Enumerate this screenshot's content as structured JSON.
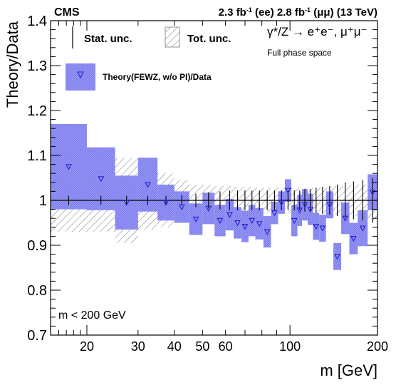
{
  "header": {
    "experiment": "CMS",
    "luminosity_html": "2.3 fb<tspan baseline-shift=\"super\" font-size=\"9\">-1</tspan> (ee) 2.8 fb<tspan baseline-shift=\"super\" font-size=\"9\">-1</tspan> (μμ) (13 TeV)"
  },
  "legend": {
    "stat_unc": "Stat. unc.",
    "tot_unc": "Tot. unc.",
    "theory": "Theory(FEWZ, w/o PI)/Data"
  },
  "process_label": "γ*/Z → e⁺e⁻, μ⁺μ⁻",
  "phase_space_label": "Full phase space",
  "mass_cut_label": "m < 200 GeV",
  "colors": {
    "theory": "#5555ee",
    "theory_fill": "#8f8ff2",
    "total_hatch": "#777777"
  },
  "chart_data": {
    "type": "scatter",
    "title": "",
    "xlabel": "m [GeV]",
    "ylabel": "Theory/Data",
    "xscale": "log",
    "xlim": [
      15,
      200
    ],
    "ylim": [
      0.7,
      1.4
    ],
    "xticks": [
      20,
      30,
      40,
      50,
      60,
      100,
      200
    ],
    "yticks": [
      0.7,
      0.8,
      0.9,
      1.0,
      1.1,
      1.2,
      1.3,
      1.4
    ],
    "grid": false,
    "legend_position": "top",
    "reference_line": 1.0,
    "bins": [
      {
        "lo": 15,
        "hi": 20,
        "ratio": 1.075,
        "theory_unc": 0.095,
        "tot_unc": 0.07,
        "stat_unc": 0.01
      },
      {
        "lo": 20,
        "hi": 25,
        "ratio": 1.048,
        "theory_unc": 0.07,
        "tot_unc": 0.07,
        "stat_unc": 0.01
      },
      {
        "lo": 25,
        "hi": 30,
        "ratio": 0.995,
        "theory_unc": 0.06,
        "tot_unc": 0.095,
        "stat_unc": 0.01
      },
      {
        "lo": 30,
        "hi": 35,
        "ratio": 1.035,
        "theory_unc": 0.06,
        "tot_unc": 0.065,
        "stat_unc": 0.01
      },
      {
        "lo": 35,
        "hi": 40,
        "ratio": 0.995,
        "theory_unc": 0.04,
        "tot_unc": 0.06,
        "stat_unc": 0.01
      },
      {
        "lo": 40,
        "hi": 45,
        "ratio": 0.985,
        "theory_unc": 0.035,
        "tot_unc": 0.045,
        "stat_unc": 0.012
      },
      {
        "lo": 45,
        "hi": 50,
        "ratio": 0.958,
        "theory_unc": 0.035,
        "tot_unc": 0.035,
        "stat_unc": 0.015
      },
      {
        "lo": 50,
        "hi": 55,
        "ratio": 0.982,
        "theory_unc": 0.035,
        "tot_unc": 0.035,
        "stat_unc": 0.018
      },
      {
        "lo": 55,
        "hi": 60,
        "ratio": 0.955,
        "theory_unc": 0.035,
        "tot_unc": 0.032,
        "stat_unc": 0.02
      },
      {
        "lo": 60,
        "hi": 64,
        "ratio": 0.968,
        "theory_unc": 0.035,
        "tot_unc": 0.032,
        "stat_unc": 0.022
      },
      {
        "lo": 64,
        "hi": 68,
        "ratio": 0.95,
        "theory_unc": 0.035,
        "tot_unc": 0.03,
        "stat_unc": 0.022
      },
      {
        "lo": 68,
        "hi": 72,
        "ratio": 0.942,
        "theory_unc": 0.035,
        "tot_unc": 0.03,
        "stat_unc": 0.022
      },
      {
        "lo": 72,
        "hi": 76,
        "ratio": 0.955,
        "theory_unc": 0.035,
        "tot_unc": 0.03,
        "stat_unc": 0.022
      },
      {
        "lo": 76,
        "hi": 81,
        "ratio": 0.948,
        "theory_unc": 0.035,
        "tot_unc": 0.028,
        "stat_unc": 0.022
      },
      {
        "lo": 81,
        "hi": 86,
        "ratio": 0.93,
        "theory_unc": 0.035,
        "tot_unc": 0.028,
        "stat_unc": 0.022
      },
      {
        "lo": 86,
        "hi": 91,
        "ratio": 0.972,
        "theory_unc": 0.025,
        "tot_unc": 0.028,
        "stat_unc": 0.022
      },
      {
        "lo": 91,
        "hi": 96,
        "ratio": 0.995,
        "theory_unc": 0.025,
        "tot_unc": 0.028,
        "stat_unc": 0.022
      },
      {
        "lo": 96,
        "hi": 101,
        "ratio": 1.022,
        "theory_unc": 0.025,
        "tot_unc": 0.028,
        "stat_unc": 0.022
      },
      {
        "lo": 101,
        "hi": 106,
        "ratio": 0.955,
        "theory_unc": 0.035,
        "tot_unc": 0.028,
        "stat_unc": 0.022
      },
      {
        "lo": 106,
        "hi": 110,
        "ratio": 0.978,
        "theory_unc": 0.035,
        "tot_unc": 0.028,
        "stat_unc": 0.022
      },
      {
        "lo": 110,
        "hi": 115,
        "ratio": 0.99,
        "theory_unc": 0.035,
        "tot_unc": 0.028,
        "stat_unc": 0.025
      },
      {
        "lo": 115,
        "hi": 120,
        "ratio": 0.98,
        "theory_unc": 0.035,
        "tot_unc": 0.028,
        "stat_unc": 0.025
      },
      {
        "lo": 120,
        "hi": 126,
        "ratio": 0.942,
        "theory_unc": 0.03,
        "tot_unc": 0.028,
        "stat_unc": 0.028
      },
      {
        "lo": 126,
        "hi": 133,
        "ratio": 0.938,
        "theory_unc": 0.03,
        "tot_unc": 0.028,
        "stat_unc": 0.03
      },
      {
        "lo": 133,
        "hi": 141,
        "ratio": 0.99,
        "theory_unc": 0.03,
        "tot_unc": 0.028,
        "stat_unc": 0.032
      },
      {
        "lo": 141,
        "hi": 150,
        "ratio": 0.875,
        "theory_unc": 0.03,
        "tot_unc": 0.032,
        "stat_unc": 0.035
      },
      {
        "lo": 150,
        "hi": 160,
        "ratio": 0.96,
        "theory_unc": 0.035,
        "tot_unc": 0.032,
        "stat_unc": 0.04
      },
      {
        "lo": 160,
        "hi": 171,
        "ratio": 0.915,
        "theory_unc": 0.035,
        "tot_unc": 0.035,
        "stat_unc": 0.042
      },
      {
        "lo": 171,
        "hi": 185,
        "ratio": 0.938,
        "theory_unc": 0.04,
        "tot_unc": 0.035,
        "stat_unc": 0.045
      },
      {
        "lo": 185,
        "hi": 200,
        "ratio": 1.018,
        "theory_unc": 0.04,
        "tot_unc": 0.045,
        "stat_unc": 0.05
      }
    ]
  }
}
